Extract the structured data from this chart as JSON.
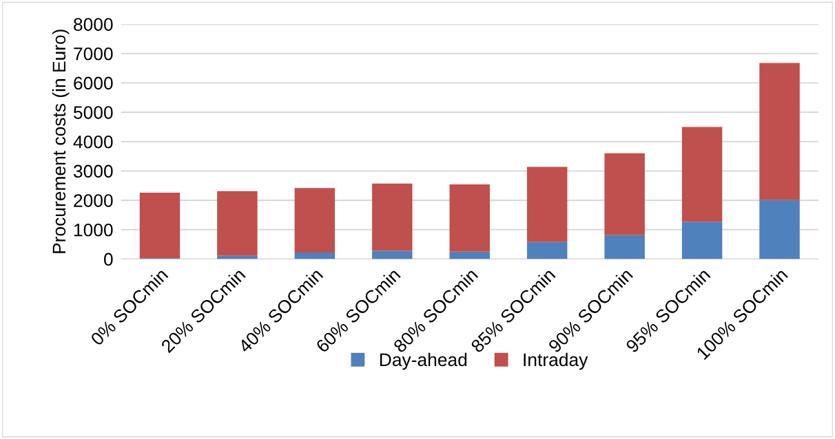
{
  "chart_data": {
    "type": "bar",
    "stacked": true,
    "ylabel": "Procurement costs (in Euro)",
    "categories": [
      "0% SOCmin",
      "20% SOCmin",
      "40% SOCmin",
      "60% SOCmin",
      "80% SOCmin",
      "85% SOCmin",
      "90% SOCmin",
      "95% SOCmin",
      "100% SOCmin"
    ],
    "series": [
      {
        "name": "Day-ahead",
        "color": "#4f81bd",
        "values": [
          30,
          110,
          220,
          280,
          250,
          580,
          810,
          1270,
          2010
        ]
      },
      {
        "name": "Intraday",
        "color": "#c0504d",
        "values": [
          2230,
          2200,
          2200,
          2290,
          2290,
          2560,
          2790,
          3230,
          4670
        ]
      }
    ],
    "ylim": [
      0,
      8000
    ],
    "yticks": [
      0,
      1000,
      2000,
      3000,
      4000,
      5000,
      6000,
      7000,
      8000
    ],
    "grid": "y",
    "legend": "bottom"
  }
}
